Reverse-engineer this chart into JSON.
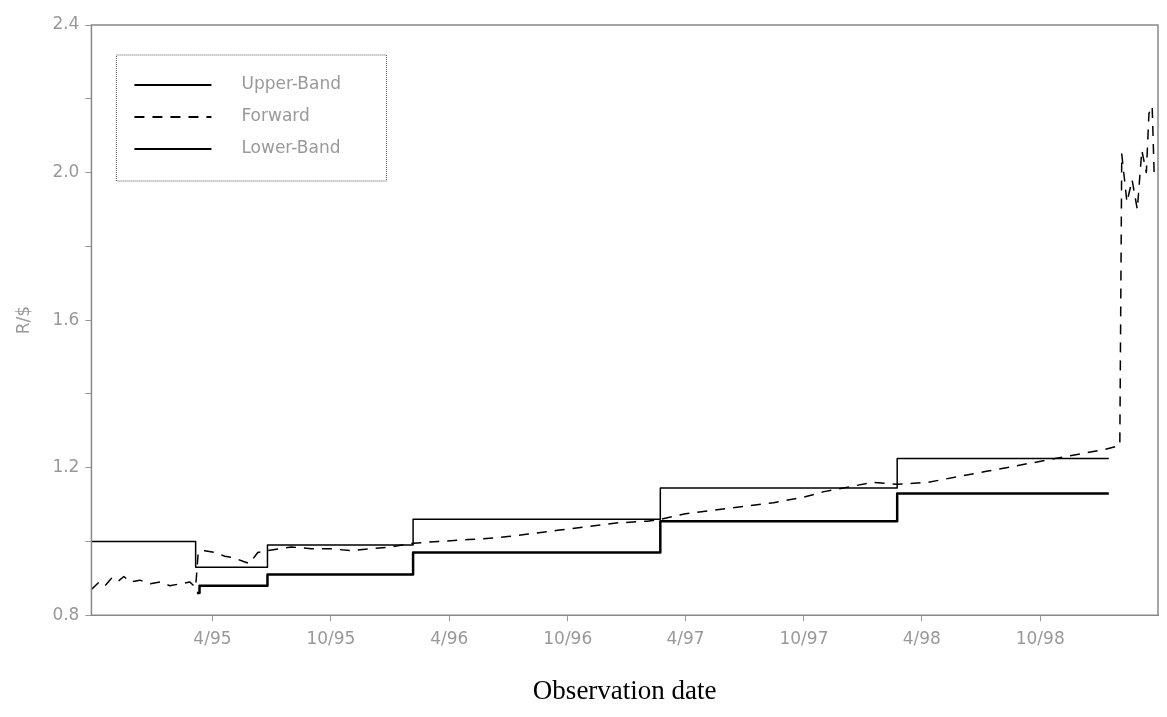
{
  "chart_data": {
    "type": "line",
    "xlabel": "Observation date",
    "ylabel": "R/$",
    "xlim": [
      "1994-09-26",
      "1999-04-01"
    ],
    "xticks": [
      {
        "value": "1995-04-01",
        "label": "4/95"
      },
      {
        "value": "1995-10-01",
        "label": "10/95"
      },
      {
        "value": "1996-04-01",
        "label": "4/96"
      },
      {
        "value": "1996-10-01",
        "label": "10/96"
      },
      {
        "value": "1997-04-01",
        "label": "4/97"
      },
      {
        "value": "1997-10-01",
        "label": "10/97"
      },
      {
        "value": "1998-04-01",
        "label": "4/98"
      },
      {
        "value": "1998-10-01",
        "label": "10/98"
      }
    ],
    "ylim": [
      0.8,
      2.4
    ],
    "yticks": [
      {
        "value": 0.8,
        "label": "0.8"
      },
      {
        "value": 1.0,
        "label": null
      },
      {
        "value": 1.2,
        "label": "1.2"
      },
      {
        "value": 1.4,
        "label": null
      },
      {
        "value": 1.6,
        "label": "1.6"
      },
      {
        "value": 1.8,
        "label": null
      },
      {
        "value": 2.0,
        "label": "2.0"
      },
      {
        "value": 2.2,
        "label": null
      },
      {
        "value": 2.4,
        "label": "2.4"
      }
    ],
    "grid": false,
    "legend": "top left",
    "marker": "none",
    "series": [
      {
        "name": "Upper-Band",
        "type": "step",
        "color": "#000000",
        "line_style": "solid",
        "x": [
          "1994-09-26",
          "1995-03-06",
          "1995-06-25",
          "1996-02-05",
          "1997-02-21",
          "1998-02-22",
          "1999-01-15"
        ],
        "values": [
          1.0,
          0.93,
          0.99,
          1.06,
          1.145,
          1.225,
          1.225
        ]
      },
      {
        "name": "Forward",
        "type": "line",
        "color": "#000000",
        "line_style": "dashed",
        "x": [
          "1994-09-26",
          "1994-10-08",
          "1994-10-17",
          "1994-10-27",
          "1994-11-05",
          "1994-11-15",
          "1994-11-25",
          "1994-12-10",
          "1994-12-26",
          "1995-01-10",
          "1995-01-25",
          "1995-02-10",
          "1995-02-25",
          "1995-03-06",
          "1995-03-10",
          "1995-03-20",
          "1995-04-05",
          "1995-04-20",
          "1995-05-05",
          "1995-05-20",
          "1995-05-28",
          "1995-06-10",
          "1995-06-25",
          "1995-08-01",
          "1995-09-01",
          "1995-10-01",
          "1995-11-01",
          "1995-12-01",
          "1996-01-01",
          "1996-02-05",
          "1996-03-15",
          "1996-05-01",
          "1996-06-15",
          "1996-08-01",
          "1996-09-15",
          "1996-11-01",
          "1996-12-15",
          "1997-02-01",
          "1997-02-21",
          "1997-04-01",
          "1997-05-15",
          "1997-07-01",
          "1997-08-15",
          "1997-10-01",
          "1997-11-01",
          "1997-12-01",
          "1998-01-15",
          "1998-02-22",
          "1998-04-10",
          "1998-05-25",
          "1998-07-10",
          "1998-08-25",
          "1998-10-10",
          "1998-11-25",
          "1999-01-10",
          "1999-02-01",
          "1999-02-04",
          "1999-02-12",
          "1999-02-20",
          "1999-02-28",
          "1999-03-07",
          "1999-03-14",
          "1999-03-18",
          "1999-03-23",
          "1999-03-26"
        ],
        "values": [
          0.87,
          0.89,
          0.88,
          0.9,
          0.89,
          0.905,
          0.89,
          0.895,
          0.885,
          0.89,
          0.88,
          0.885,
          0.89,
          0.875,
          0.97,
          0.975,
          0.97,
          0.96,
          0.955,
          0.945,
          0.94,
          0.97,
          0.975,
          0.985,
          0.98,
          0.98,
          0.975,
          0.98,
          0.985,
          0.995,
          1.0,
          1.005,
          1.01,
          1.02,
          1.03,
          1.04,
          1.05,
          1.055,
          1.06,
          1.075,
          1.085,
          1.095,
          1.105,
          1.12,
          1.135,
          1.145,
          1.16,
          1.155,
          1.16,
          1.175,
          1.19,
          1.205,
          1.22,
          1.235,
          1.25,
          1.26,
          2.05,
          1.92,
          1.98,
          1.9,
          2.06,
          2.0,
          2.16,
          2.18,
          2.0
        ]
      },
      {
        "name": "Lower-Band",
        "type": "step",
        "color": "#000000",
        "line_style": "solid",
        "x": [
          "1995-03-08",
          "1995-03-12",
          "1995-06-25",
          "1996-02-05",
          "1997-02-21",
          "1998-02-22",
          "1999-01-15"
        ],
        "values": [
          0.86,
          0.88,
          0.91,
          0.97,
          1.055,
          1.13,
          1.13
        ]
      }
    ]
  }
}
